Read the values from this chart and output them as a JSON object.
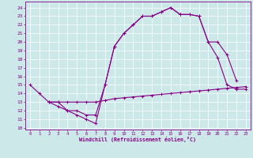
{
  "title": "",
  "xlabel": "Windchill (Refroidissement éolien,°C)",
  "bg_color": "#cce8e8",
  "line_color": "#880088",
  "xlim": [
    -0.5,
    23.5
  ],
  "ylim": [
    9.8,
    24.7
  ],
  "yticks": [
    10,
    11,
    12,
    13,
    14,
    15,
    16,
    17,
    18,
    19,
    20,
    21,
    22,
    23,
    24
  ],
  "xticks": [
    0,
    1,
    2,
    3,
    4,
    5,
    6,
    7,
    8,
    9,
    10,
    11,
    12,
    13,
    14,
    15,
    16,
    17,
    18,
    19,
    20,
    21,
    22,
    23
  ],
  "line1_x": [
    0,
    1,
    2,
    3,
    4,
    5,
    6,
    7,
    8,
    9,
    10,
    11,
    12,
    13,
    14,
    15,
    16,
    17,
    18,
    19,
    20,
    21,
    22,
    23
  ],
  "line1_y": [
    15,
    14,
    13,
    13,
    12,
    12,
    11.5,
    11.5,
    15,
    19.5,
    21,
    22,
    23,
    23,
    23.5,
    24,
    23.2,
    23.2,
    23,
    20,
    18.2,
    15,
    14.5,
    14.5
  ],
  "line2_x": [
    2,
    3,
    4,
    5,
    6,
    7,
    8,
    9,
    10,
    11,
    12,
    13,
    14,
    15,
    16,
    17,
    18,
    19,
    20,
    21,
    22
  ],
  "line2_y": [
    13,
    12.5,
    12,
    11.5,
    11,
    10.5,
    15,
    19.5,
    21,
    22,
    23,
    23,
    23.5,
    24,
    23.2,
    23.2,
    23,
    20,
    20,
    18.5,
    15.5
  ],
  "line3_x": [
    2,
    3,
    4,
    5,
    6,
    7,
    8,
    9,
    10,
    11,
    12,
    13,
    14,
    15,
    16,
    17,
    18,
    19,
    20,
    21,
    22,
    23
  ],
  "line3_y": [
    13,
    13,
    13,
    13,
    13,
    13,
    13.2,
    13.4,
    13.5,
    13.6,
    13.7,
    13.8,
    13.9,
    14,
    14.1,
    14.2,
    14.3,
    14.4,
    14.5,
    14.6,
    14.7,
    14.8
  ]
}
